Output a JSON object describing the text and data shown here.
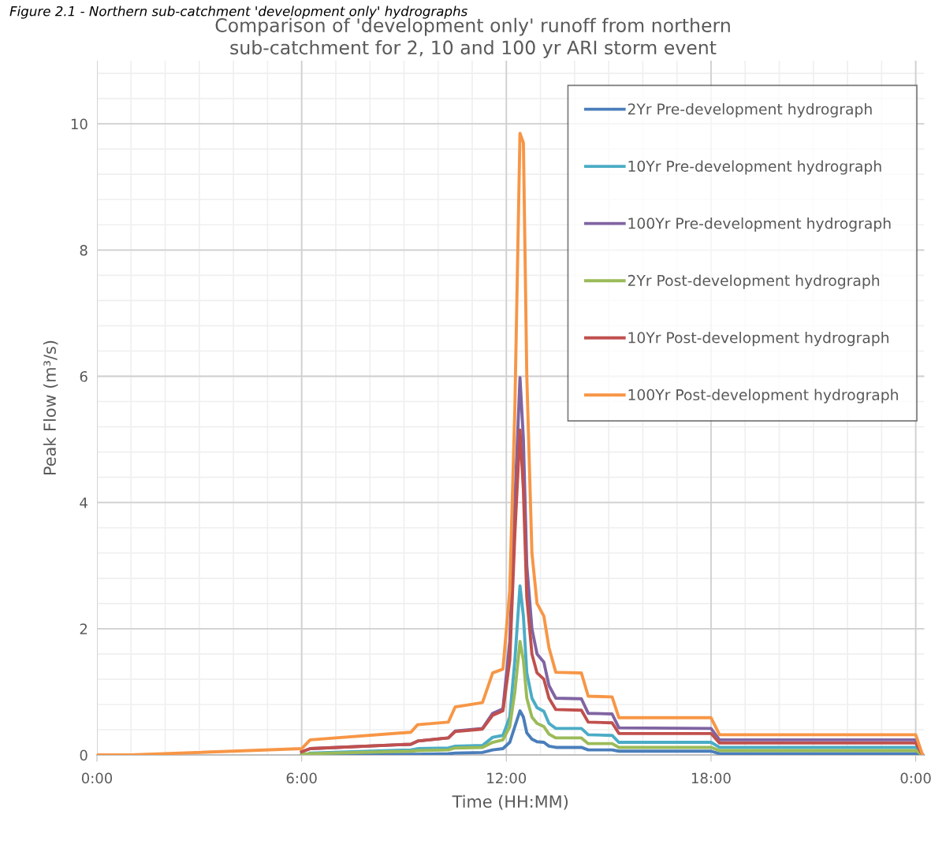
{
  "chart_data": {
    "type": "line",
    "title": "Comparison of 'development only' runoff from northern sub-catchment for 2, 10 and 100 yr ARI storm event",
    "xlabel": "Time (HH:MM)",
    "ylabel": "Peak Flow (m³/s)",
    "annotations": [
      "Figure 2.1 - Northern sub-catchment 'development only' hydrographs"
    ],
    "x": [
      0,
      1,
      6,
      6.25,
      9.2,
      9.4,
      10.3,
      10.5,
      11.3,
      11.6,
      11.9,
      12.1,
      12.25,
      12.4,
      12.5,
      12.6,
      12.75,
      12.9,
      13.1,
      13.25,
      13.45,
      14.2,
      14.4,
      15.1,
      15.3,
      18.0,
      18.25,
      24.0,
      24.2
    ],
    "series": [
      {
        "name": "2Yr Pre-development hydrograph",
        "color": "#4a7ebb",
        "values": [
          null,
          null,
          0,
          0.01,
          0.01,
          0.01,
          0.02,
          0.03,
          0.04,
          0.08,
          0.1,
          0.2,
          0.45,
          0.7,
          0.6,
          0.35,
          0.25,
          0.21,
          0.2,
          0.14,
          0.12,
          0.12,
          0.08,
          0.08,
          0.06,
          0.06,
          0.02,
          0.02,
          0
        ]
      },
      {
        "name": "10Yr Pre-development hydrograph",
        "color": "#4bacc6",
        "values": [
          null,
          null,
          null,
          0.03,
          0.08,
          0.1,
          0.11,
          0.14,
          0.15,
          0.28,
          0.31,
          0.6,
          1.5,
          2.68,
          2.2,
          1.3,
          0.9,
          0.75,
          0.69,
          0.5,
          0.42,
          0.42,
          0.32,
          0.31,
          0.2,
          0.2,
          0.12,
          0.12,
          0
        ]
      },
      {
        "name": "100Yr Pre-development hydrograph",
        "color": "#8064a2",
        "values": [
          null,
          null,
          0.05,
          0.1,
          0.17,
          0.22,
          0.27,
          0.38,
          0.42,
          0.66,
          0.73,
          1.8,
          4.0,
          5.98,
          5.0,
          3.0,
          2.0,
          1.6,
          1.47,
          1.1,
          0.9,
          0.89,
          0.66,
          0.65,
          0.43,
          0.42,
          0.24,
          0.24,
          0
        ]
      },
      {
        "name": "2Yr Post-development hydrograph",
        "color": "#9bbb59",
        "values": [
          null,
          null,
          0.01,
          0.02,
          0.06,
          0.07,
          0.08,
          0.11,
          0.12,
          0.2,
          0.24,
          0.45,
          1.0,
          1.8,
          1.5,
          0.9,
          0.6,
          0.5,
          0.45,
          0.33,
          0.27,
          0.27,
          0.18,
          0.18,
          0.12,
          0.12,
          0.07,
          0.07,
          0
        ]
      },
      {
        "name": "10Yr Post-development hydrograph",
        "color": "#c0504d",
        "values": [
          null,
          null,
          0.05,
          0.1,
          0.17,
          0.22,
          0.27,
          0.37,
          0.41,
          0.63,
          0.7,
          1.5,
          3.5,
          5.15,
          4.2,
          2.5,
          1.6,
          1.3,
          1.2,
          0.9,
          0.72,
          0.71,
          0.52,
          0.51,
          0.34,
          0.34,
          0.19,
          0.19,
          0
        ]
      },
      {
        "name": "100Yr Post-development hydrograph",
        "color": "#f79646",
        "values": [
          0,
          0,
          0.1,
          0.24,
          0.36,
          0.48,
          0.52,
          0.76,
          0.83,
          1.3,
          1.36,
          2.6,
          5.5,
          9.85,
          9.7,
          6.0,
          3.2,
          2.4,
          2.2,
          1.7,
          1.31,
          1.3,
          0.93,
          0.92,
          0.59,
          0.59,
          0.32,
          0.32,
          0
        ]
      }
    ],
    "xlim": [
      0,
      24.25
    ],
    "ylim": [
      0,
      11
    ],
    "xticks": [
      {
        "value": 0,
        "label": "0:00"
      },
      {
        "value": 6,
        "label": "6:00"
      },
      {
        "value": 12,
        "label": "12:00"
      },
      {
        "value": 18,
        "label": "18:00"
      },
      {
        "value": 24,
        "label": "0:00"
      }
    ],
    "yticks": [
      0,
      2,
      4,
      6,
      8,
      10
    ],
    "grid": true,
    "legend": "top right",
    "marker": "none",
    "line_style": "solid"
  }
}
